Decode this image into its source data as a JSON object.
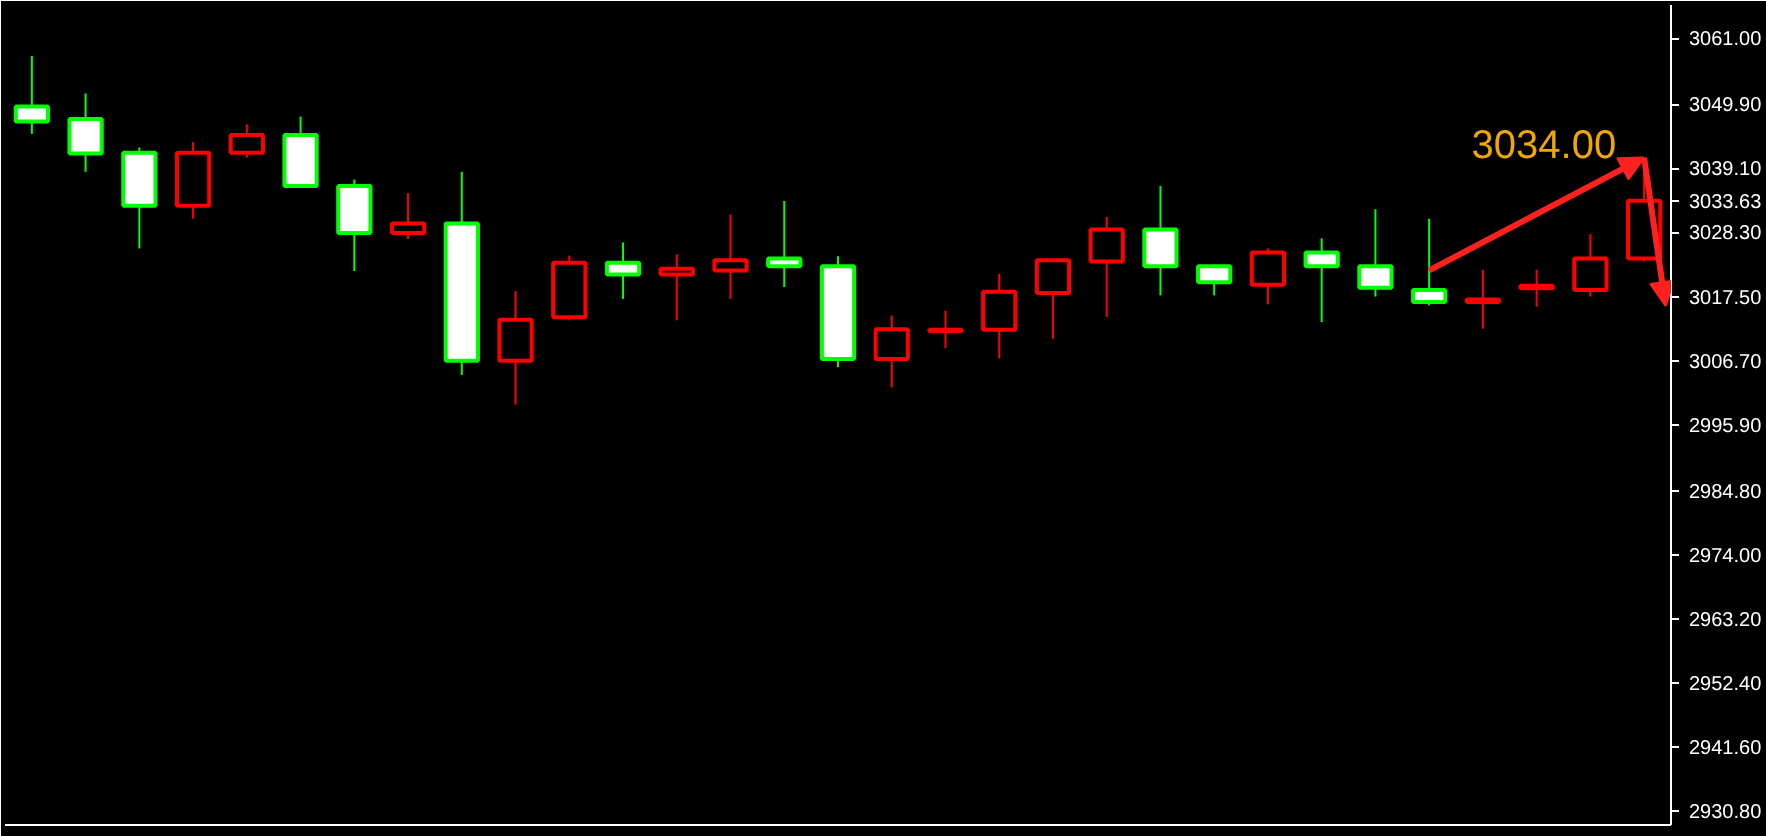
{
  "chart_data": {
    "type": "candlestick",
    "categories": [
      null,
      null,
      null,
      null,
      null,
      null,
      null,
      null,
      null,
      null,
      null,
      null,
      null,
      null,
      null,
      null,
      null,
      null,
      null,
      null,
      null,
      null,
      null,
      null,
      null,
      null,
      null,
      null,
      null,
      null,
      null
    ],
    "ohlc": [
      [
        3049.5,
        3058.0,
        3044.9,
        3047.0
      ],
      [
        3047.4,
        3051.7,
        3038.5,
        3041.6
      ],
      [
        3041.7,
        3042.6,
        3025.6,
        3032.8
      ],
      [
        3032.8,
        3043.5,
        3030.6,
        3041.7
      ],
      [
        3041.7,
        3046.5,
        3040.9,
        3044.7
      ],
      [
        3044.7,
        3047.8,
        3036.1,
        3036.1
      ],
      [
        3036.1,
        3037.2,
        3021.8,
        3028.2
      ],
      [
        3028.2,
        3034.9,
        3027.2,
        3029.8
      ],
      [
        3029.8,
        3038.5,
        3004.3,
        3006.7
      ],
      [
        3006.7,
        3018.4,
        2999.3,
        3013.6
      ],
      [
        3014.0,
        3024.4,
        3013.5,
        3023.2
      ],
      [
        3023.2,
        3026.6,
        3017.1,
        3021.2
      ],
      [
        3021.2,
        3024.6,
        3013.5,
        3022.2
      ],
      [
        3021.9,
        3031.3,
        3017.1,
        3023.6
      ],
      [
        3023.9,
        3033.6,
        3019.1,
        3022.6
      ],
      [
        3022.6,
        3024.3,
        3005.6,
        3007.0
      ],
      [
        3007.0,
        3014.3,
        3002.2,
        3012.0
      ],
      [
        3011.7,
        3015.1,
        3008.8,
        3011.9
      ],
      [
        3011.9,
        3021.3,
        3007.1,
        3018.3
      ],
      [
        3018.1,
        3023.6,
        3010.4,
        3023.6
      ],
      [
        3023.4,
        3030.9,
        3014.1,
        3028.8
      ],
      [
        3028.8,
        3036.1,
        3017.7,
        3022.6
      ],
      [
        3022.6,
        3022.9,
        3017.7,
        3019.9
      ],
      [
        3019.5,
        3025.6,
        3016.2,
        3024.9
      ],
      [
        3024.9,
        3027.3,
        3013.2,
        3022.6
      ],
      [
        3022.6,
        3032.2,
        3017.5,
        3019.0
      ],
      [
        3018.6,
        3030.6,
        3016.0,
        3016.6
      ],
      [
        3016.6,
        3022.0,
        3012.1,
        3017.0
      ],
      [
        3018.9,
        3022.0,
        3015.8,
        3019.3
      ],
      [
        3018.6,
        3028.0,
        3017.5,
        3023.9
      ],
      [
        3023.9,
        3038.9,
        3023.4,
        3033.63
      ]
    ],
    "colors": [
      "#00ff00",
      "#00ff00",
      "#00ff00",
      "#ff0000",
      "#ff0000",
      "#00ff00",
      "#00ff00",
      "#ff0000",
      "#00ff00",
      "#ff0000",
      "#ff0000",
      "#00ff00",
      "#ff0000",
      "#ff0000",
      "#00ff00",
      "#00ff00",
      "#ff0000",
      "#ff0000",
      "#ff0000",
      "#ff0000",
      "#ff0000",
      "#00ff00",
      "#00ff00",
      "#ff0000",
      "#00ff00",
      "#00ff00",
      "#00ff00",
      "#ff0000",
      "#ff0000",
      "#ff0000",
      "#ff0000"
    ],
    "ylim": [
      2928.5,
      3066.6
    ],
    "yticks": [
      {
        "value": 3061.0,
        "label": "3061.00"
      },
      {
        "value": 3049.9,
        "label": "3049.90"
      },
      {
        "value": 3039.1,
        "label": "3039.10"
      },
      {
        "value": 3033.63,
        "label": "3033.63"
      },
      {
        "value": 3028.3,
        "label": "3028.30"
      },
      {
        "value": 3017.5,
        "label": "3017.50"
      },
      {
        "value": 3006.7,
        "label": "3006.70"
      },
      {
        "value": 2995.9,
        "label": "2995.90"
      },
      {
        "value": 2984.8,
        "label": "2984.80"
      },
      {
        "value": 2974.0,
        "label": "2974.00"
      },
      {
        "value": 2963.2,
        "label": "2963.20"
      },
      {
        "value": 2952.4,
        "label": "2952.40"
      },
      {
        "value": 2941.6,
        "label": "2941.60"
      },
      {
        "value": 2930.8,
        "label": "2930.80"
      }
    ],
    "tick_labels": "y",
    "grid": false,
    "annotations": [
      "3034.00"
    ]
  }
}
